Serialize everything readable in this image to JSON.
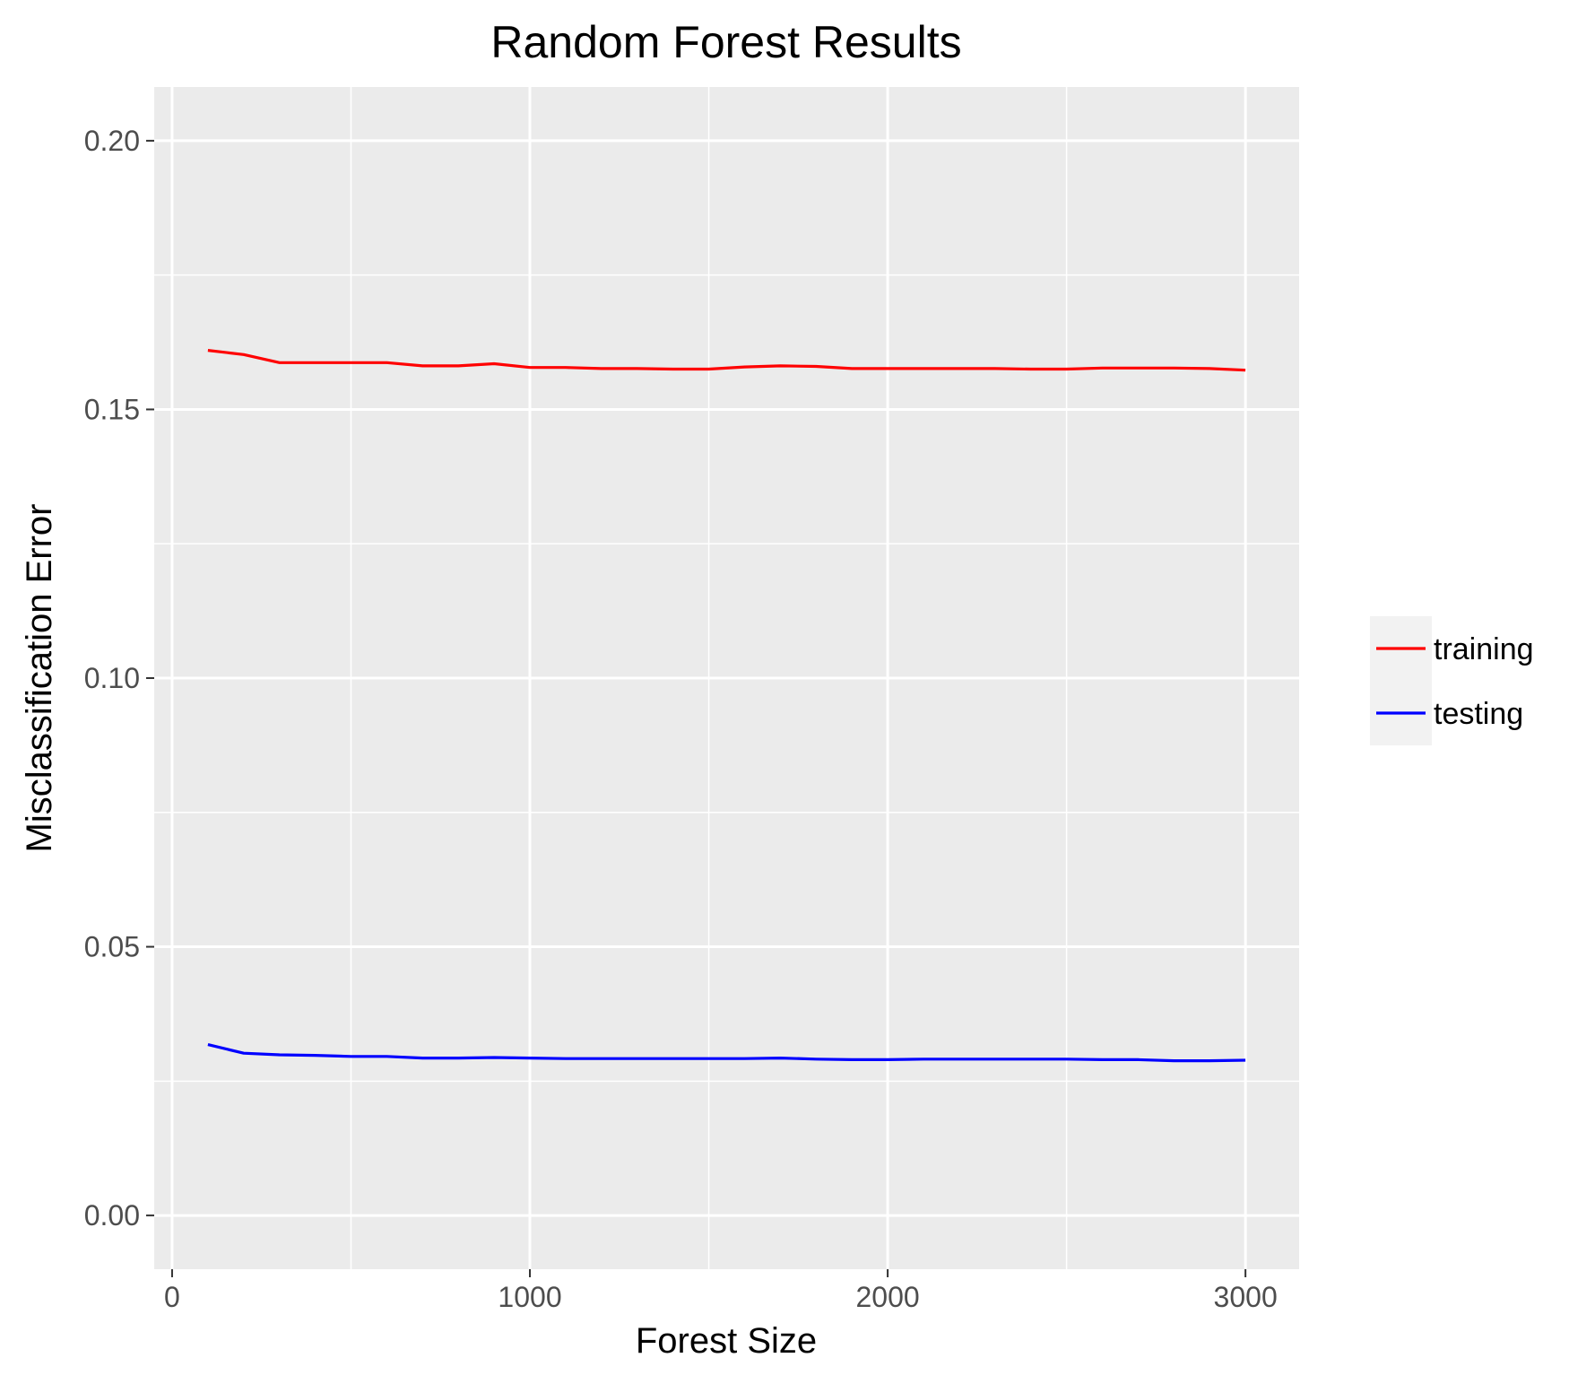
{
  "chart_data": {
    "type": "line",
    "title": "Random Forest Results",
    "xlabel": "Forest Size",
    "ylabel": "Misclassification Error",
    "xlim": [
      -50,
      3150
    ],
    "ylim": [
      -0.01,
      0.21
    ],
    "x_ticks": [
      0,
      1000,
      2000,
      3000
    ],
    "x_tick_labels": [
      "0",
      "1000",
      "2000",
      "3000"
    ],
    "y_ticks": [
      0.0,
      0.05,
      0.1,
      0.15,
      0.2
    ],
    "y_tick_labels": [
      "0.00",
      "0.05",
      "0.10",
      "0.15",
      "0.20"
    ],
    "grid": true,
    "legend_position": "right",
    "x": [
      100,
      200,
      300,
      400,
      500,
      600,
      700,
      800,
      900,
      1000,
      1100,
      1200,
      1300,
      1400,
      1500,
      1600,
      1700,
      1800,
      1900,
      2000,
      2100,
      2200,
      2300,
      2400,
      2500,
      2600,
      2700,
      2800,
      2900,
      3000
    ],
    "series": [
      {
        "name": "training",
        "color": "#ff0000",
        "values": [
          0.161,
          0.1602,
          0.1587,
          0.1587,
          0.1587,
          0.1587,
          0.1581,
          0.1581,
          0.1585,
          0.1578,
          0.1578,
          0.1576,
          0.1576,
          0.1575,
          0.1575,
          0.1579,
          0.1581,
          0.158,
          0.1576,
          0.1576,
          0.1576,
          0.1576,
          0.1576,
          0.1575,
          0.1575,
          0.1577,
          0.1577,
          0.1577,
          0.1576,
          0.1573
        ]
      },
      {
        "name": "testing",
        "color": "#0000ff",
        "values": [
          0.0318,
          0.0302,
          0.0299,
          0.0298,
          0.0296,
          0.0296,
          0.0293,
          0.0293,
          0.0294,
          0.0293,
          0.0292,
          0.0292,
          0.0292,
          0.0292,
          0.0292,
          0.0292,
          0.0293,
          0.0291,
          0.029,
          0.029,
          0.0291,
          0.0291,
          0.0291,
          0.0291,
          0.0291,
          0.029,
          0.029,
          0.0288,
          0.0288,
          0.0289
        ]
      }
    ]
  }
}
